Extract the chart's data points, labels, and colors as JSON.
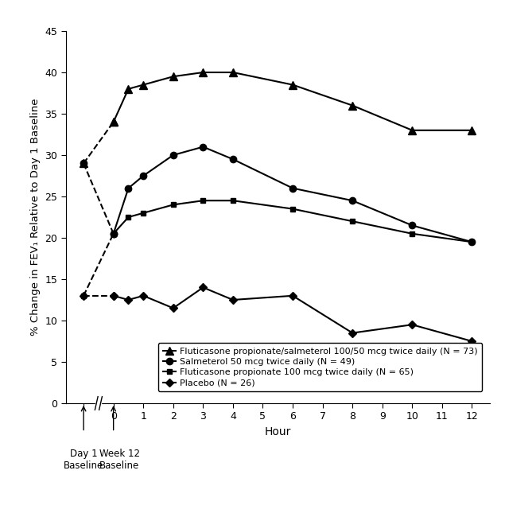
{
  "ylabel": "% Change in FEV₁ Relative to Day 1 Baseline",
  "xlabel": "Hour",
  "ylim": [
    0,
    45
  ],
  "yticks": [
    0,
    5,
    10,
    15,
    20,
    25,
    30,
    35,
    40,
    45
  ],
  "xticks": [
    -1,
    0,
    1,
    2,
    3,
    4,
    5,
    6,
    7,
    8,
    9,
    10,
    11,
    12
  ],
  "xlim": [
    -1.6,
    12.6
  ],
  "fp_sal_x": [
    -1,
    0,
    0.5,
    1,
    2,
    3,
    4,
    6,
    8,
    10,
    12
  ],
  "fp_sal_y": [
    29,
    34,
    38,
    38.5,
    39.5,
    40,
    40,
    38.5,
    36,
    33,
    33
  ],
  "sal_x": [
    -1,
    0,
    0.5,
    1,
    2,
    3,
    4,
    6,
    8,
    10,
    12
  ],
  "sal_y": [
    29,
    20.5,
    26,
    27.5,
    30,
    31,
    29.5,
    26,
    24.5,
    21.5,
    19.5
  ],
  "fp_x": [
    -1,
    0,
    0.5,
    1,
    2,
    3,
    4,
    6,
    8,
    10,
    12
  ],
  "fp_y": [
    13,
    20.5,
    22.5,
    23,
    24,
    24.5,
    24.5,
    23.5,
    22,
    20.5,
    19.5
  ],
  "placebo_x": [
    -1,
    0,
    0.5,
    1,
    2,
    3,
    4,
    6,
    8,
    10,
    12
  ],
  "placebo_y": [
    13,
    13,
    12.5,
    13,
    11.5,
    14,
    12.5,
    13,
    8.5,
    9.5,
    7.5
  ],
  "legend_labels": [
    "Fluticasone propionate/salmeterol 100/50 mcg twice daily (N = 73)",
    "Salmeterol 50 mcg twice daily (N = 49)",
    "Fluticasone propionate 100 mcg twice daily (N = 65)",
    "Placebo (N = 26)"
  ],
  "line_color": "#000000",
  "background_color": "#ffffff"
}
